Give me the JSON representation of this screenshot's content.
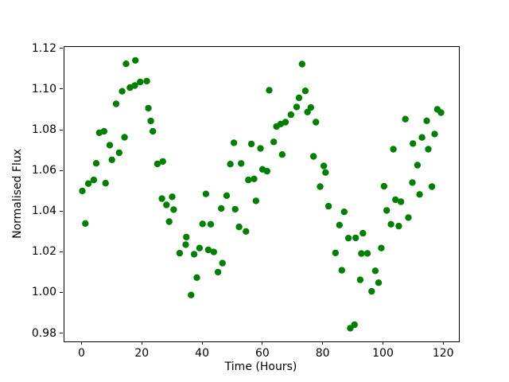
{
  "figure": {
    "background": "#ffffff",
    "plot_border_color": "#000000"
  },
  "chart_data": {
    "type": "scatter",
    "title": "",
    "xlabel": "Time (Hours)",
    "ylabel": "Normalised Flux",
    "xlim": [
      -5.95,
      124.95
    ],
    "ylim": [
      0.9763,
      1.1211
    ],
    "grid": false,
    "legend": null,
    "marker": {
      "color": "#008000",
      "radius_px": 4.2
    },
    "xticks": {
      "values": [
        0,
        20,
        40,
        60,
        80,
        100,
        120
      ],
      "labels": [
        "0",
        "20",
        "40",
        "60",
        "80",
        "100",
        "120"
      ]
    },
    "yticks": {
      "values": [
        0.98,
        1.0,
        1.02,
        1.04,
        1.06,
        1.08,
        1.1,
        1.12
      ],
      "labels": [
        "0.98",
        "1.00",
        "1.02",
        "1.04",
        "1.06",
        "1.08",
        "1.10",
        "1.12"
      ]
    },
    "series": [
      {
        "name": "normalised-flux",
        "x": [
          0.0,
          1.0,
          2.0,
          3.8,
          4.6,
          5.6,
          7.2,
          7.7,
          9.1,
          9.8,
          11.2,
          12.2,
          13.2,
          14.0,
          14.5,
          15.8,
          17.4,
          17.6,
          19.2,
          21.4,
          21.9,
          22.7,
          23.4,
          24.9,
          26.4,
          26.7,
          27.9,
          28.8,
          29.8,
          30.3,
          32.3,
          34.3,
          34.5,
          36.1,
          37.1,
          38.0,
          38.9,
          39.9,
          41.0,
          41.8,
          42.6,
          43.6,
          45.0,
          46.1,
          46.5,
          47.9,
          49.1,
          50.3,
          50.7,
          52.0,
          52.7,
          54.3,
          55.1,
          56.1,
          57.0,
          57.6,
          59.1,
          59.8,
          61.3,
          62.0,
          63.5,
          64.4,
          65.8,
          66.3,
          67.4,
          69.2,
          71.1,
          71.9,
          72.9,
          74.0,
          74.7,
          75.8,
          76.7,
          77.5,
          78.9,
          80.1,
          80.7,
          81.7,
          84.0,
          85.3,
          86.1,
          86.9,
          88.3,
          88.9,
          90.3,
          90.7,
          92.2,
          92.6,
          93.1,
          94.6,
          96.0,
          97.2,
          98.3,
          99.2,
          100.1,
          101.0,
          102.4,
          103.2,
          103.9,
          105.0,
          105.7,
          107.2,
          108.2,
          109.5,
          109.7,
          111.2,
          111.9,
          112.7,
          114.3,
          114.8,
          116.0,
          116.9,
          117.8,
          119.0
        ],
        "y": [
          1.0503,
          1.0343,
          1.0539,
          1.0557,
          1.0639,
          1.0789,
          1.0796,
          1.0541,
          1.0728,
          1.0656,
          1.0931,
          1.0691,
          1.0993,
          1.0767,
          1.1128,
          1.1011,
          1.1021,
          1.1145,
          1.1039,
          1.1043,
          1.091,
          1.0847,
          1.0796,
          1.0636,
          1.0465,
          1.0648,
          1.0434,
          1.0352,
          1.0474,
          1.0411,
          1.0197,
          1.0239,
          1.0276,
          0.9991,
          1.0192,
          1.0077,
          1.0222,
          1.0341,
          1.0488,
          1.0213,
          1.0339,
          1.0203,
          1.0104,
          1.0417,
          1.0148,
          1.048,
          1.0635,
          1.074,
          1.0413,
          1.0326,
          1.0638,
          1.0304,
          1.0557,
          1.0734,
          1.0562,
          1.0454,
          1.0712,
          1.0609,
          1.06,
          1.0998,
          1.0744,
          1.082,
          1.0832,
          1.0682,
          1.0841,
          1.0878,
          1.0916,
          1.0961,
          1.1127,
          1.0995,
          1.0891,
          1.0913,
          1.0673,
          1.0841,
          1.0524,
          1.0626,
          1.0594,
          1.0428,
          1.0198,
          1.0335,
          1.0113,
          1.04,
          1.0271,
          0.9828,
          0.9845,
          1.0272,
          1.0066,
          1.0195,
          1.0295,
          1.0196,
          1.0009,
          1.011,
          1.0052,
          1.0222,
          1.0526,
          1.0407,
          1.0339,
          1.0708,
          1.046,
          1.033,
          1.045,
          1.0856,
          1.0372,
          1.0544,
          1.0736,
          1.063,
          1.0486,
          1.0766,
          1.0848,
          1.0708,
          1.0524,
          1.0783,
          1.0904,
          1.0888
        ]
      }
    ]
  }
}
